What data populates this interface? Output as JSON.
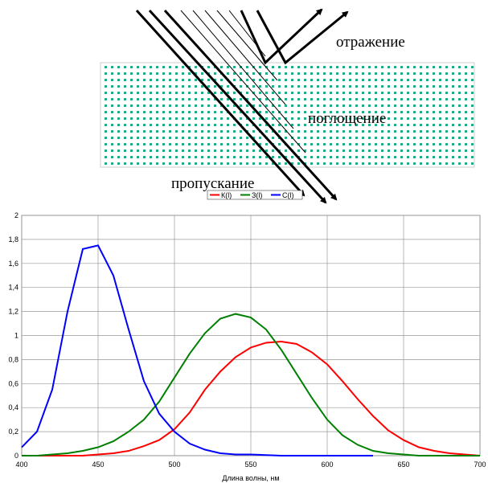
{
  "diagram": {
    "labels": [
      "отражение",
      "поглощение",
      "пропускание"
    ]
  },
  "chart_data": {
    "type": "line",
    "x_label": "Длина волны, нм",
    "x": [
      400,
      410,
      420,
      430,
      440,
      450,
      460,
      470,
      480,
      490,
      500,
      510,
      520,
      530,
      540,
      550,
      560,
      570,
      580,
      590,
      600,
      610,
      620,
      630,
      640,
      650,
      660,
      670,
      680,
      690,
      700
    ],
    "series": [
      {
        "name": "К(l)",
        "color": "#ff0000",
        "values": [
          0,
          0,
          0,
          0,
          0,
          0.01,
          0.02,
          0.04,
          0.08,
          0.13,
          0.22,
          0.36,
          0.55,
          0.7,
          0.82,
          0.9,
          0.94,
          0.95,
          0.93,
          0.86,
          0.76,
          0.62,
          0.47,
          0.33,
          0.21,
          0.13,
          0.07,
          0.04,
          0.02,
          0.01,
          0
        ]
      },
      {
        "name": "З(l)",
        "color": "#008000",
        "values": [
          0,
          0,
          0.01,
          0.02,
          0.04,
          0.07,
          0.12,
          0.2,
          0.3,
          0.45,
          0.65,
          0.85,
          1.02,
          1.14,
          1.18,
          1.15,
          1.05,
          0.88,
          0.68,
          0.48,
          0.3,
          0.17,
          0.09,
          0.04,
          0.02,
          0.01,
          0,
          0,
          0,
          0,
          0
        ]
      },
      {
        "name": "С(l)",
        "color": "#0000ff",
        "values": [
          0.07,
          0.2,
          0.55,
          1.2,
          1.72,
          1.75,
          1.5,
          1.05,
          0.62,
          0.35,
          0.2,
          0.1,
          0.05,
          0.02,
          0.01,
          0.01,
          0.005,
          0,
          0,
          0,
          0,
          0,
          0,
          0,
          null,
          null,
          null,
          null,
          null,
          null,
          null
        ]
      }
    ],
    "xlim": [
      400,
      700
    ],
    "xticks": [
      400,
      450,
      500,
      550,
      600,
      650,
      700
    ],
    "ylim": [
      0,
      2
    ],
    "yticks": [
      0,
      {
        "value": 0.2,
        "label": "0,2"
      },
      {
        "value": 0.4,
        "label": "0,4"
      },
      {
        "value": 0.6,
        "label": "0,6"
      },
      {
        "value": 0.8,
        "label": "0,8"
      },
      1,
      {
        "value": 1.2,
        "label": "1,2"
      },
      {
        "value": 1.4,
        "label": "1,4"
      },
      {
        "value": 1.6,
        "label": "1,6"
      },
      {
        "value": 1.8,
        "label": "1,8"
      },
      2
    ],
    "grid": true
  }
}
